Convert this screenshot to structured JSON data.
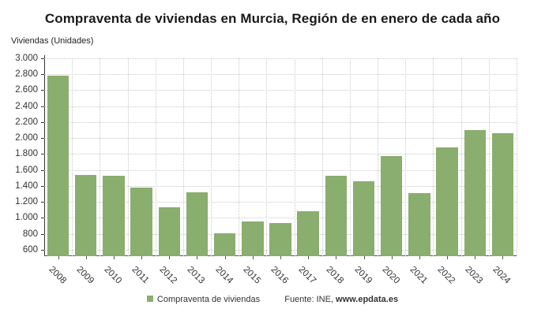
{
  "chart_data": {
    "type": "bar",
    "title": "Compraventa de viviendas en Murcia, Región de en enero de cada año",
    "ylabel": "Viviendas (Unidades)",
    "xlabel": "",
    "categories": [
      "2008",
      "2009",
      "2010",
      "2011",
      "2012",
      "2013",
      "2014",
      "2015",
      "2016",
      "2017",
      "2018",
      "2019",
      "2020",
      "2021",
      "2022",
      "2023",
      "2024"
    ],
    "series": [
      {
        "name": "Compraventa de viviendas",
        "color": "#8aae6e",
        "values": [
          2780,
          1540,
          1530,
          1380,
          1135,
          1325,
          805,
          950,
          935,
          1080,
          1530,
          1460,
          1775,
          1310,
          1880,
          2100,
          2060
        ]
      }
    ],
    "ylim": [
      520,
      3000
    ],
    "yticks": [
      600,
      800,
      1000,
      1200,
      1400,
      1600,
      1800,
      2000,
      2200,
      2400,
      2600,
      2800,
      3000
    ],
    "ytick_labels": [
      "600",
      "800",
      "1.000",
      "1.200",
      "1.400",
      "1.600",
      "1.800",
      "2.000",
      "2.200",
      "2.400",
      "2.600",
      "2.800",
      "3.000"
    ],
    "grid": true,
    "legend_position": "bottom"
  },
  "legend": {
    "label": "Compraventa de viviendas",
    "source_prefix": "Fuente: INE, ",
    "source_site": "www.epdata.es"
  }
}
